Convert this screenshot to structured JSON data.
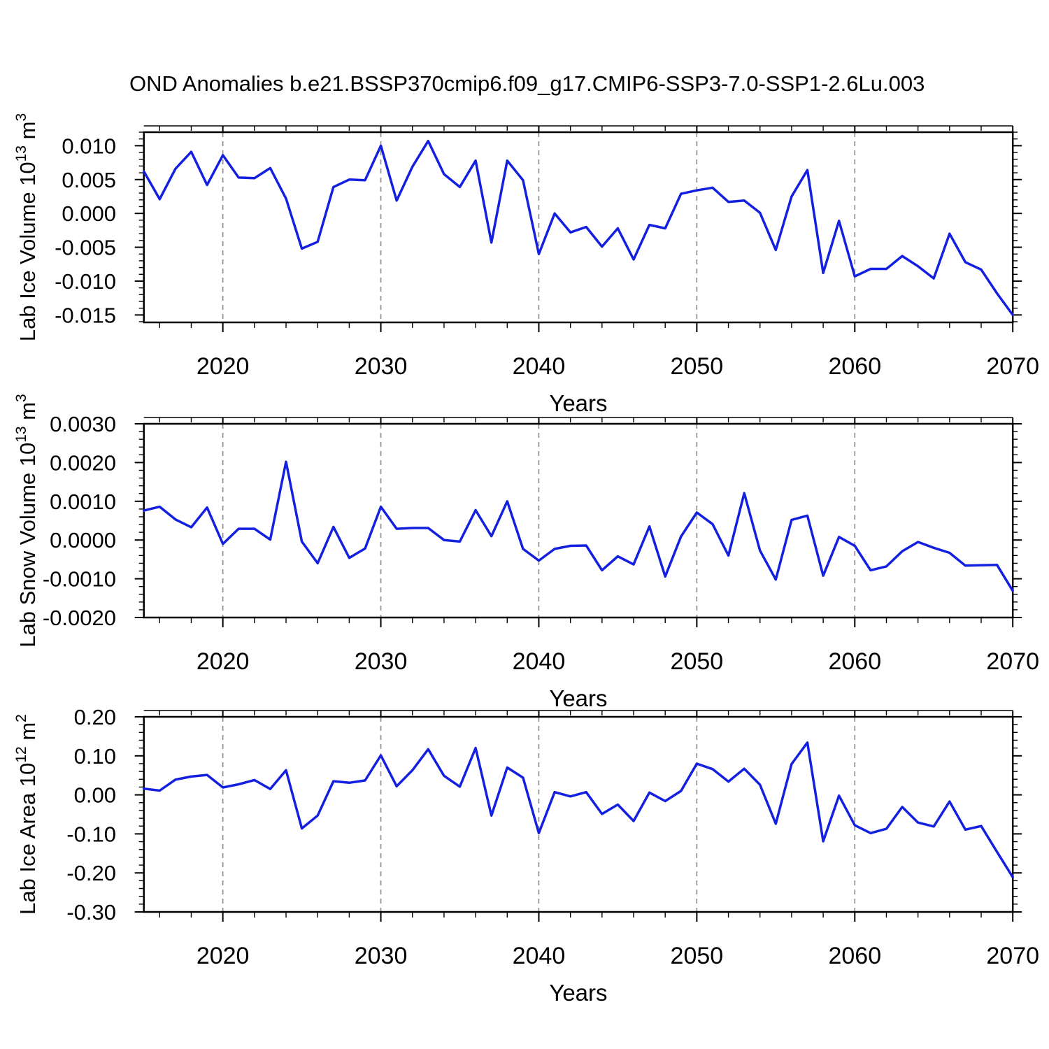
{
  "title": "OND Anomalies b.e21.BSSP370cmip6.f09_g17.CMIP6-SSP3-7.0-SSP1-2.6Lu.003",
  "line_color": "#1420e0",
  "grid_color": "#8c8c8c",
  "axis_color": "#000000",
  "years": [
    2015,
    2016,
    2017,
    2018,
    2019,
    2020,
    2021,
    2022,
    2023,
    2024,
    2025,
    2026,
    2027,
    2028,
    2029,
    2030,
    2031,
    2032,
    2033,
    2034,
    2035,
    2036,
    2037,
    2038,
    2039,
    2040,
    2041,
    2042,
    2043,
    2044,
    2045,
    2046,
    2047,
    2048,
    2049,
    2050,
    2051,
    2052,
    2053,
    2054,
    2055,
    2056,
    2057,
    2058,
    2059,
    2060,
    2061,
    2062,
    2063,
    2064,
    2065,
    2066,
    2067,
    2068,
    2069,
    2070
  ],
  "x_axis": {
    "label": "Years",
    "range": [
      2015,
      2070
    ],
    "ticks": [
      2020,
      2030,
      2040,
      2050,
      2060,
      2070
    ],
    "tick_labels": [
      "2020",
      "2030",
      "2040",
      "2050",
      "2060",
      "2070"
    ],
    "minor_step": 2,
    "grid": [
      2020,
      2030,
      2040,
      2050,
      2060
    ]
  },
  "chart_data": [
    {
      "id": "lab-ice-volume",
      "type": "line",
      "ylabel": "Lab Ice Volume 10^13 m^3",
      "ylim": [
        -0.0161,
        0.012
      ],
      "ytick_values": [
        0.01,
        0.005,
        0.0,
        -0.005,
        -0.01,
        -0.015
      ],
      "ytick_labels": [
        "0.010",
        "0.005",
        "0.000",
        "-0.005",
        "-0.010",
        "-0.015"
      ],
      "yminor_step": 0.001,
      "values": [
        0.0062,
        0.0021,
        0.0066,
        0.0091,
        0.0042,
        0.0086,
        0.0053,
        0.0052,
        0.0067,
        0.0022,
        -0.0052,
        -0.0042,
        0.0039,
        0.005,
        0.0049,
        0.01,
        0.0019,
        0.0069,
        0.0107,
        0.0058,
        0.0039,
        0.0078,
        -0.0043,
        0.0078,
        0.0049,
        -0.006,
        0.0,
        -0.0028,
        -0.002,
        -0.0049,
        -0.0022,
        -0.0068,
        -0.0017,
        -0.0022,
        0.0029,
        0.0034,
        0.0038,
        0.0017,
        0.0019,
        0.0001,
        -0.0054,
        0.0025,
        0.0064,
        -0.0088,
        -0.0011,
        -0.0093,
        -0.0082,
        -0.0082,
        -0.0063,
        -0.0078,
        -0.0096,
        -0.003,
        -0.0072,
        -0.0083,
        -0.0118,
        -0.015
      ]
    },
    {
      "id": "lab-snow-volume",
      "type": "line",
      "ylabel": "Lab Snow Volume 10^13 m^3",
      "ylim": [
        -0.002,
        0.003
      ],
      "ytick_values": [
        0.003,
        0.002,
        0.001,
        0.0,
        -0.001,
        -0.002
      ],
      "ytick_labels": [
        "0.0030",
        "0.0020",
        "0.0010",
        "0.0000",
        "-0.0010",
        "-0.0020"
      ],
      "yminor_step": 0.0002,
      "values": [
        0.00076,
        0.00086,
        0.00053,
        0.00033,
        0.00084,
        -0.0001,
        0.00029,
        0.00029,
        1e-05,
        0.00202,
        -4e-05,
        -0.0006,
        0.00034,
        -0.00046,
        -0.00022,
        0.00086,
        0.00029,
        0.00031,
        0.00031,
        0.0,
        -4e-05,
        0.00077,
        0.0001,
        0.001,
        -0.00023,
        -0.00053,
        -0.00023,
        -0.00015,
        -0.00014,
        -0.00078,
        -0.00042,
        -0.00063,
        0.00035,
        -0.00094,
        9e-05,
        0.00071,
        0.00041,
        -0.0004,
        0.00121,
        -0.00027,
        -0.00102,
        0.00052,
        0.00063,
        -0.00092,
        8e-05,
        -0.00015,
        -0.00078,
        -0.00068,
        -0.00029,
        -5e-05,
        -0.0002,
        -0.00033,
        -0.00066,
        -0.00065,
        -0.00064,
        -0.00131
      ]
    },
    {
      "id": "lab-ice-area",
      "type": "line",
      "ylabel": "Lab Ice Area 10^12 m^2",
      "ylim": [
        -0.3,
        0.2
      ],
      "ytick_values": [
        0.2,
        0.1,
        0.0,
        -0.1,
        -0.2,
        -0.3
      ],
      "ytick_labels": [
        "0.20",
        "0.10",
        "0.00",
        "-0.10",
        "-0.20",
        "-0.30"
      ],
      "yminor_step": 0.02,
      "values": [
        0.016,
        0.011,
        0.039,
        0.047,
        0.051,
        0.019,
        0.027,
        0.038,
        0.015,
        0.063,
        -0.086,
        -0.053,
        0.035,
        0.031,
        0.037,
        0.101,
        0.022,
        0.063,
        0.117,
        0.049,
        0.021,
        0.12,
        -0.053,
        0.07,
        0.044,
        -0.098,
        0.007,
        -0.004,
        0.007,
        -0.049,
        -0.025,
        -0.067,
        0.006,
        -0.016,
        0.01,
        0.08,
        0.066,
        0.034,
        0.067,
        0.026,
        -0.074,
        0.079,
        0.134,
        -0.119,
        -0.002,
        -0.078,
        -0.098,
        -0.087,
        -0.031,
        -0.071,
        -0.081,
        -0.017,
        -0.089,
        -0.08,
        -0.146,
        -0.211
      ]
    }
  ]
}
